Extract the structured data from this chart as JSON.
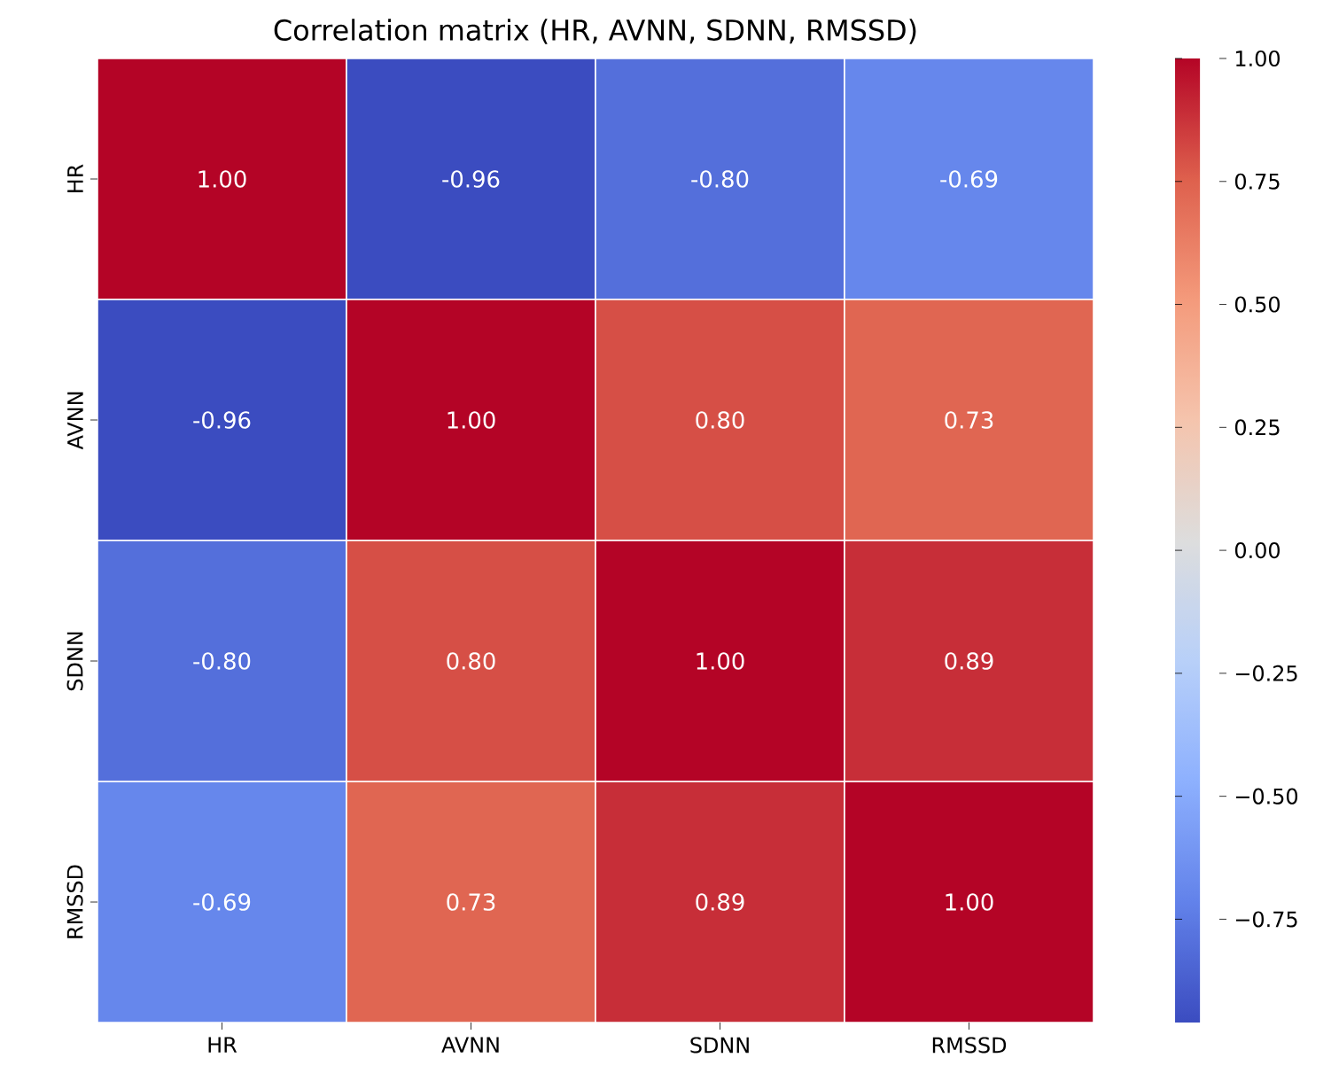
{
  "chart_data": {
    "type": "heatmap",
    "title": "Correlation matrix (HR, AVNN, SDNN, RMSSD)",
    "categories": [
      "HR",
      "AVNN",
      "SDNN",
      "RMSSD"
    ],
    "y_categories": [
      "HR",
      "AVNN",
      "SDNN",
      "RMSSD"
    ],
    "cells": [
      [
        1.0,
        -0.96,
        -0.8,
        -0.69
      ],
      [
        -0.96,
        1.0,
        0.8,
        0.73
      ],
      [
        -0.8,
        0.8,
        1.0,
        0.89
      ],
      [
        -0.69,
        0.73,
        0.89,
        1.0
      ]
    ],
    "cell_labels": [
      [
        "1.00",
        "-0.96",
        "-0.80",
        "-0.69"
      ],
      [
        "-0.96",
        "1.00",
        "0.80",
        "0.73"
      ],
      [
        "-0.80",
        "0.80",
        "1.00",
        "0.89"
      ],
      [
        "-0.69",
        "0.73",
        "0.89",
        "1.00"
      ]
    ],
    "clim": [
      -0.96,
      1.0
    ],
    "cticks": [
      {
        "value": -0.75,
        "label": "−0.75"
      },
      {
        "value": -0.5,
        "label": "−0.50"
      },
      {
        "value": -0.25,
        "label": "−0.25"
      },
      {
        "value": 0.0,
        "label": "0.00"
      },
      {
        "value": 0.25,
        "label": "0.25"
      },
      {
        "value": 0.5,
        "label": "0.50"
      },
      {
        "value": 0.75,
        "label": "0.75"
      },
      {
        "value": 1.0,
        "label": "1.00"
      }
    ]
  }
}
